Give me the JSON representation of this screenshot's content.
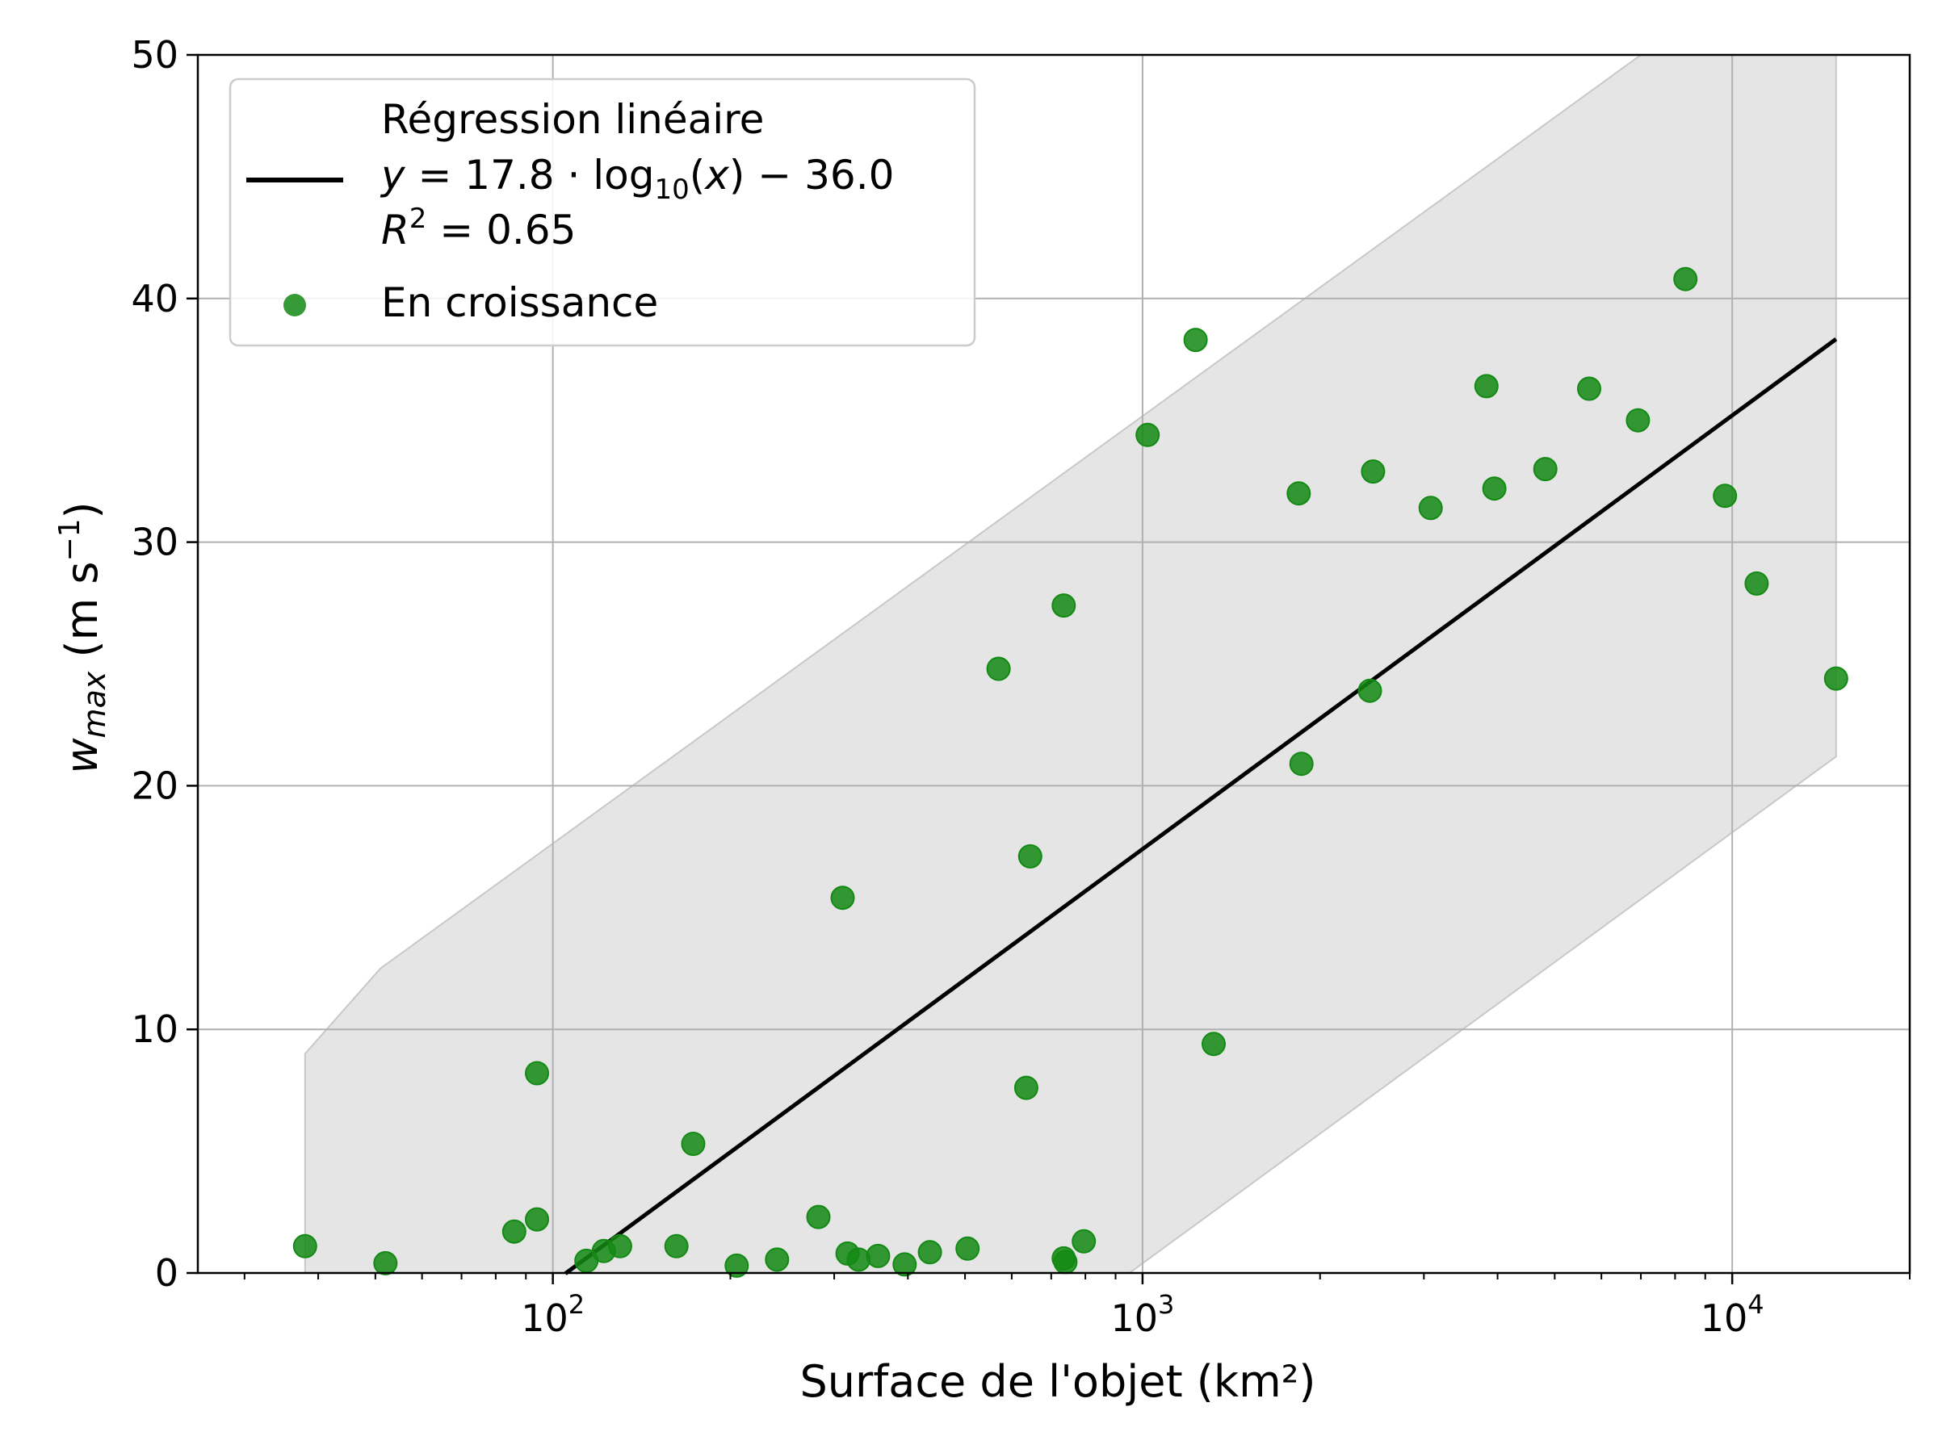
{
  "chart_data": {
    "type": "scatter",
    "xscale": "log",
    "xlim": [
      25,
      20000
    ],
    "ylim": [
      0,
      50
    ],
    "grid": true,
    "xlabel": "Surface de l'objet (km²)",
    "ylabel": {
      "main": "w",
      "sub": "max",
      "unit_open": " (m s",
      "unit_sup": "−1",
      "unit_close": ")"
    },
    "xticks": [
      {
        "value": 100,
        "base": "10",
        "exp": "2"
      },
      {
        "value": 1000,
        "base": "10",
        "exp": "3"
      },
      {
        "value": 10000,
        "base": "10",
        "exp": "4"
      }
    ],
    "yticks": [
      {
        "value": 0,
        "label": "0"
      },
      {
        "value": 10,
        "label": "10"
      },
      {
        "value": 20,
        "label": "20"
      },
      {
        "value": 30,
        "label": "30"
      },
      {
        "value": 40,
        "label": "40"
      },
      {
        "value": 50,
        "label": "50"
      }
    ],
    "legend": {
      "placement": "top-left",
      "regression_title": "Régression linéaire",
      "regression_eq_a": "y",
      "regression_eq_b": " = 17.8 · log",
      "regression_eq_sub": "10",
      "regression_eq_c": "(",
      "regression_eq_x": "x",
      "regression_eq_d": ") − 36.0",
      "r2_a": "R",
      "r2_sup": "2",
      "r2_b": " = 0.65",
      "scatter_label": "En croissance"
    },
    "colors": {
      "points": "#138a13",
      "line": "#000000",
      "band": "#dcdcdc",
      "grid": "#b0b0b0"
    },
    "regression": {
      "slope": 17.8,
      "intercept": -36.0,
      "x_range": [
        105,
        15000
      ]
    },
    "band": {
      "upper": [
        [
          38,
          9
        ],
        [
          51,
          12.5
        ],
        [
          7000,
          50
        ],
        [
          15000,
          50
        ]
      ],
      "lower": [
        [
          38,
          0
        ],
        [
          950,
          0
        ],
        [
          15000,
          21.2
        ]
      ]
    },
    "points": [
      {
        "x": 38,
        "y": 1.1
      },
      {
        "x": 52,
        "y": 0.4
      },
      {
        "x": 86,
        "y": 1.7
      },
      {
        "x": 94,
        "y": 8.2
      },
      {
        "x": 94,
        "y": 2.2
      },
      {
        "x": 114,
        "y": 0.5
      },
      {
        "x": 122,
        "y": 0.9
      },
      {
        "x": 130,
        "y": 1.1
      },
      {
        "x": 162,
        "y": 1.1
      },
      {
        "x": 173,
        "y": 5.3
      },
      {
        "x": 205,
        "y": 0.3
      },
      {
        "x": 240,
        "y": 0.55
      },
      {
        "x": 282,
        "y": 2.3
      },
      {
        "x": 310,
        "y": 15.4
      },
      {
        "x": 316,
        "y": 0.8
      },
      {
        "x": 330,
        "y": 0.55
      },
      {
        "x": 356,
        "y": 0.7
      },
      {
        "x": 395,
        "y": 0.35
      },
      {
        "x": 436,
        "y": 0.85
      },
      {
        "x": 505,
        "y": 1.0
      },
      {
        "x": 570,
        "y": 24.8
      },
      {
        "x": 635,
        "y": 7.6
      },
      {
        "x": 645,
        "y": 17.1
      },
      {
        "x": 735,
        "y": 27.4
      },
      {
        "x": 735,
        "y": 0.6
      },
      {
        "x": 740,
        "y": 0.45
      },
      {
        "x": 795,
        "y": 1.3
      },
      {
        "x": 1020,
        "y": 34.4
      },
      {
        "x": 1230,
        "y": 38.3
      },
      {
        "x": 1320,
        "y": 9.4
      },
      {
        "x": 1840,
        "y": 32.0
      },
      {
        "x": 1860,
        "y": 20.9
      },
      {
        "x": 2430,
        "y": 23.9
      },
      {
        "x": 2460,
        "y": 32.9
      },
      {
        "x": 3080,
        "y": 31.4
      },
      {
        "x": 3830,
        "y": 36.4
      },
      {
        "x": 3950,
        "y": 32.2
      },
      {
        "x": 4820,
        "y": 33.0
      },
      {
        "x": 5720,
        "y": 36.3
      },
      {
        "x": 6920,
        "y": 35.0
      },
      {
        "x": 8330,
        "y": 40.8
      },
      {
        "x": 9720,
        "y": 31.9
      },
      {
        "x": 11000,
        "y": 28.3
      },
      {
        "x": 15000,
        "y": 24.4
      }
    ]
  }
}
